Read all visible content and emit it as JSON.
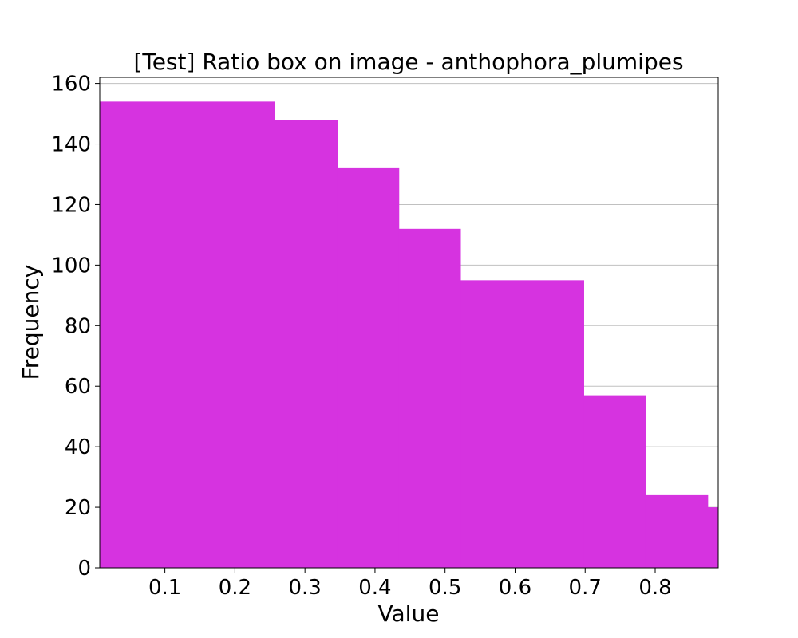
{
  "chart_data": {
    "type": "bar",
    "title": "[Test] Ratio box on image - anthophora_plumipes",
    "xlabel": "Value",
    "ylabel": "Frequency",
    "xlim": [
      0.007,
      0.89
    ],
    "ylim": [
      0,
      162
    ],
    "bins": [
      {
        "x0": 0.007,
        "x1": 0.257,
        "value": 154
      },
      {
        "x0": 0.257,
        "x1": 0.346,
        "value": 148
      },
      {
        "x0": 0.346,
        "x1": 0.434,
        "value": 132
      },
      {
        "x0": 0.434,
        "x1": 0.522,
        "value": 112
      },
      {
        "x0": 0.522,
        "x1": 0.698,
        "value": 95
      },
      {
        "x0": 0.698,
        "x1": 0.786,
        "value": 57
      },
      {
        "x0": 0.786,
        "x1": 0.875,
        "value": 24
      },
      {
        "x0": 0.875,
        "x1": 0.89,
        "value": 20
      }
    ],
    "xticks": [
      0.1,
      0.2,
      0.3,
      0.4,
      0.5,
      0.6,
      0.7,
      0.8
    ],
    "xtick_labels": [
      "0.1",
      "0.2",
      "0.3",
      "0.4",
      "0.5",
      "0.6",
      "0.7",
      "0.8"
    ],
    "yticks": [
      0,
      20,
      40,
      60,
      80,
      100,
      120,
      140,
      160
    ],
    "ytick_labels": [
      "0",
      "20",
      "40",
      "60",
      "80",
      "100",
      "120",
      "140",
      "160"
    ],
    "grid": "horizontal",
    "bar_color": "#d633e0"
  }
}
